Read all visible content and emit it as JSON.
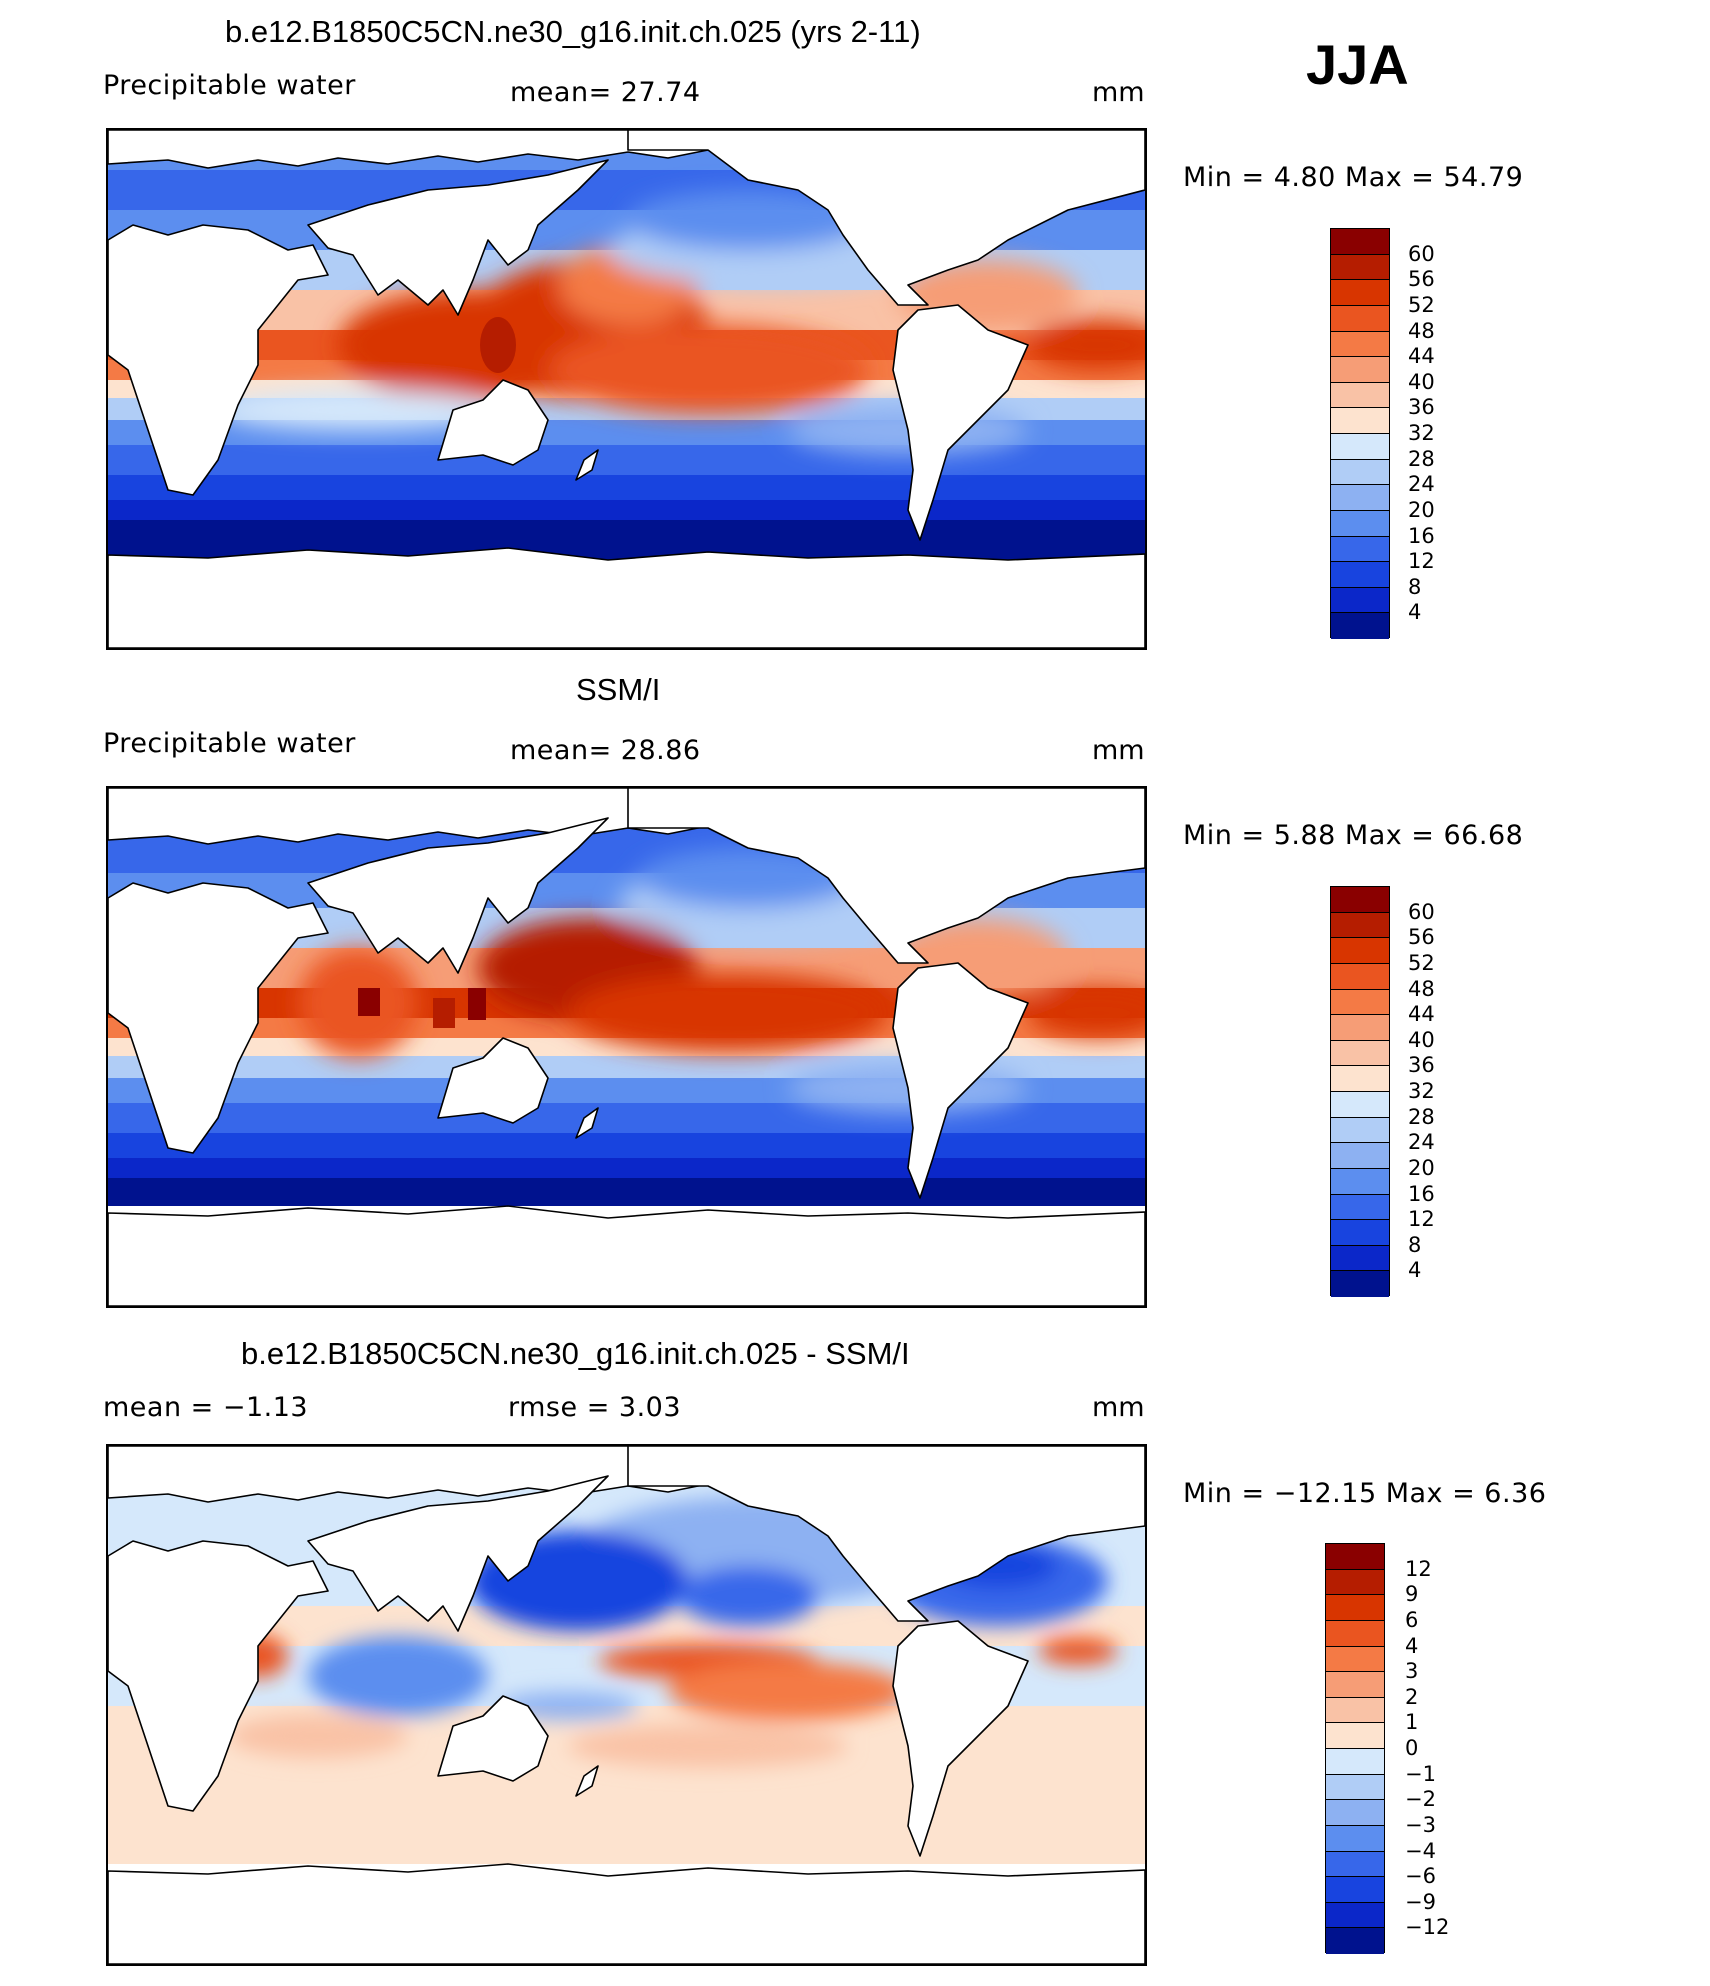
{
  "season": "JJA",
  "panels": [
    {
      "title": "b.e12.B1850C5CN.ne30_g16.init.ch.025 (yrs 2-11)",
      "left_label": "Precipitable  water",
      "center_label": "mean=   27.74",
      "units": "mm",
      "minmax": "Min  =     4.80  Max  =    54.79",
      "colorbar": {
        "labels": [
          "60",
          "56",
          "52",
          "48",
          "44",
          "40",
          "36",
          "32",
          "28",
          "24",
          "20",
          "16",
          "12",
          "8",
          "4"
        ],
        "colors": [
          "#8a0000",
          "#b51d00",
          "#d83500",
          "#ea5520",
          "#f47a45",
          "#f69d76",
          "#f9c2a6",
          "#fde3cf",
          "#d5e8fb",
          "#b0cdf6",
          "#8db1f2",
          "#5c8eef",
          "#3767ea",
          "#1844df",
          "#0b27c9",
          "#00128e"
        ]
      }
    },
    {
      "title": "SSM/I",
      "left_label": "Precipitable  water",
      "center_label": "mean=   28.86",
      "units": "mm",
      "minmax": "Min  =     5.88  Max  =    66.68",
      "colorbar": {
        "labels": [
          "60",
          "56",
          "52",
          "48",
          "44",
          "40",
          "36",
          "32",
          "28",
          "24",
          "20",
          "16",
          "12",
          "8",
          "4"
        ],
        "colors": [
          "#8a0000",
          "#b51d00",
          "#d83500",
          "#ea5520",
          "#f47a45",
          "#f69d76",
          "#f9c2a6",
          "#fde3cf",
          "#d5e8fb",
          "#b0cdf6",
          "#8db1f2",
          "#5c8eef",
          "#3767ea",
          "#1844df",
          "#0b27c9",
          "#00128e"
        ]
      }
    },
    {
      "title": "b.e12.B1850C5CN.ne30_g16.init.ch.025 - SSM/I",
      "left_label": "mean  =    −1.13",
      "center_label": "rmse  =     3.03",
      "units": "mm",
      "minmax": "Min  =  −12.15  Max  =     6.36",
      "colorbar": {
        "labels": [
          "12",
          "9",
          "6",
          "4",
          "3",
          "2",
          "1",
          "0",
          "−1",
          "−2",
          "−3",
          "−4",
          "−6",
          "−9",
          "−12"
        ],
        "colors": [
          "#8a0000",
          "#b51d00",
          "#d83500",
          "#ea5520",
          "#f47a45",
          "#f69d76",
          "#f9c2a6",
          "#fde3cf",
          "#d5e8fb",
          "#b0cdf6",
          "#8db1f2",
          "#5c8eef",
          "#3767ea",
          "#1844df",
          "#0b27c9",
          "#00128e"
        ]
      }
    }
  ]
}
